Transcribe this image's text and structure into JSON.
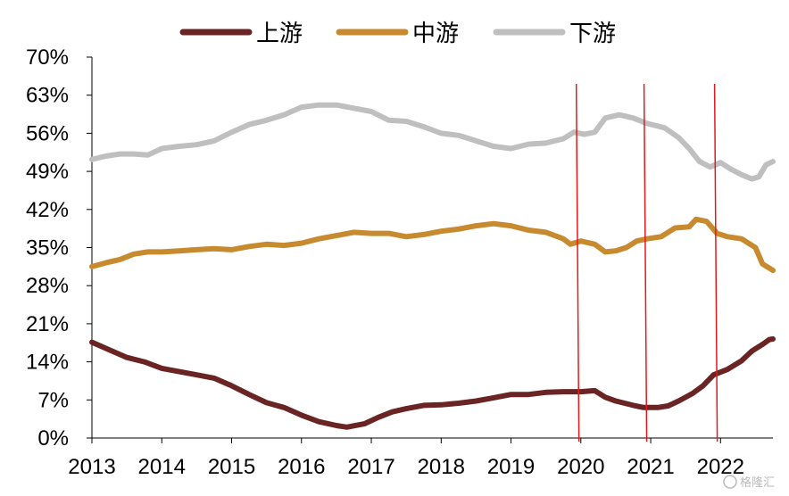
{
  "chart_data": {
    "type": "line",
    "title": "",
    "xlabel": "",
    "ylabel": "",
    "x_ticks": [
      "2013",
      "2014",
      "2015",
      "2016",
      "2017",
      "2018",
      "2019",
      "2020",
      "2021",
      "2022"
    ],
    "y_ticks": [
      "0%",
      "7%",
      "14%",
      "21%",
      "28%",
      "35%",
      "42%",
      "49%",
      "56%",
      "63%",
      "70%"
    ],
    "ylim": [
      0,
      70
    ],
    "xlim": [
      2013.0,
      2022.75
    ],
    "grid": false,
    "legend": "top",
    "vlines": [
      2019.96,
      2020.93,
      2021.94
    ],
    "vline_color": "#e31a1c",
    "series": [
      {
        "name": "上游",
        "color": "#6b2424",
        "points": [
          [
            2013.0,
            17.6
          ],
          [
            2013.25,
            16.2
          ],
          [
            2013.5,
            14.8
          ],
          [
            2013.75,
            14.0
          ],
          [
            2014.0,
            12.8
          ],
          [
            2014.25,
            12.2
          ],
          [
            2014.5,
            11.6
          ],
          [
            2014.75,
            11.0
          ],
          [
            2015.0,
            9.6
          ],
          [
            2015.25,
            8.0
          ],
          [
            2015.5,
            6.5
          ],
          [
            2015.75,
            5.6
          ],
          [
            2016.0,
            4.2
          ],
          [
            2016.25,
            3.0
          ],
          [
            2016.5,
            2.3
          ],
          [
            2016.65,
            2.0
          ],
          [
            2016.9,
            2.6
          ],
          [
            2017.1,
            3.8
          ],
          [
            2017.3,
            4.8
          ],
          [
            2017.5,
            5.4
          ],
          [
            2017.75,
            6.0
          ],
          [
            2018.0,
            6.1
          ],
          [
            2018.25,
            6.4
          ],
          [
            2018.5,
            6.8
          ],
          [
            2018.75,
            7.4
          ],
          [
            2019.0,
            8.0
          ],
          [
            2019.25,
            8.0
          ],
          [
            2019.5,
            8.4
          ],
          [
            2019.75,
            8.5
          ],
          [
            2020.0,
            8.5
          ],
          [
            2020.2,
            8.7
          ],
          [
            2020.35,
            7.5
          ],
          [
            2020.5,
            6.8
          ],
          [
            2020.75,
            6.0
          ],
          [
            2020.9,
            5.6
          ],
          [
            2021.1,
            5.6
          ],
          [
            2021.25,
            5.9
          ],
          [
            2021.4,
            6.8
          ],
          [
            2021.6,
            8.2
          ],
          [
            2021.75,
            9.6
          ],
          [
            2021.9,
            11.6
          ],
          [
            2022.1,
            12.6
          ],
          [
            2022.3,
            14.2
          ],
          [
            2022.45,
            16.0
          ],
          [
            2022.6,
            17.2
          ],
          [
            2022.7,
            18.1
          ],
          [
            2022.75,
            18.2
          ]
        ]
      },
      {
        "name": "中游",
        "color": "#c88a2e",
        "points": [
          [
            2013.0,
            31.5
          ],
          [
            2013.2,
            32.2
          ],
          [
            2013.4,
            32.8
          ],
          [
            2013.6,
            33.8
          ],
          [
            2013.8,
            34.2
          ],
          [
            2014.0,
            34.2
          ],
          [
            2014.25,
            34.4
          ],
          [
            2014.5,
            34.6
          ],
          [
            2014.75,
            34.8
          ],
          [
            2015.0,
            34.6
          ],
          [
            2015.25,
            35.2
          ],
          [
            2015.5,
            35.6
          ],
          [
            2015.75,
            35.4
          ],
          [
            2016.0,
            35.8
          ],
          [
            2016.25,
            36.6
          ],
          [
            2016.5,
            37.2
          ],
          [
            2016.75,
            37.8
          ],
          [
            2017.0,
            37.6
          ],
          [
            2017.25,
            37.6
          ],
          [
            2017.5,
            37.0
          ],
          [
            2017.75,
            37.4
          ],
          [
            2018.0,
            38.0
          ],
          [
            2018.25,
            38.4
          ],
          [
            2018.5,
            39.0
          ],
          [
            2018.75,
            39.4
          ],
          [
            2019.0,
            39.0
          ],
          [
            2019.25,
            38.2
          ],
          [
            2019.5,
            37.8
          ],
          [
            2019.75,
            36.6
          ],
          [
            2019.85,
            35.6
          ],
          [
            2020.0,
            36.2
          ],
          [
            2020.2,
            35.6
          ],
          [
            2020.35,
            34.2
          ],
          [
            2020.5,
            34.4
          ],
          [
            2020.65,
            35.0
          ],
          [
            2020.8,
            36.2
          ],
          [
            2020.95,
            36.6
          ],
          [
            2021.15,
            37.0
          ],
          [
            2021.35,
            38.6
          ],
          [
            2021.55,
            38.8
          ],
          [
            2021.65,
            40.2
          ],
          [
            2021.8,
            39.8
          ],
          [
            2021.95,
            37.6
          ],
          [
            2022.1,
            37.0
          ],
          [
            2022.3,
            36.6
          ],
          [
            2022.5,
            35.0
          ],
          [
            2022.6,
            32.0
          ],
          [
            2022.75,
            30.8
          ]
        ]
      },
      {
        "name": "下游",
        "color": "#bfbfbf",
        "points": [
          [
            2013.0,
            51.2
          ],
          [
            2013.2,
            51.8
          ],
          [
            2013.4,
            52.2
          ],
          [
            2013.6,
            52.2
          ],
          [
            2013.8,
            52.0
          ],
          [
            2014.0,
            53.2
          ],
          [
            2014.25,
            53.6
          ],
          [
            2014.5,
            53.9
          ],
          [
            2014.75,
            54.6
          ],
          [
            2015.0,
            56.2
          ],
          [
            2015.25,
            57.6
          ],
          [
            2015.5,
            58.4
          ],
          [
            2015.75,
            59.4
          ],
          [
            2016.0,
            60.8
          ],
          [
            2016.25,
            61.2
          ],
          [
            2016.5,
            61.2
          ],
          [
            2016.75,
            60.6
          ],
          [
            2017.0,
            60.0
          ],
          [
            2017.25,
            58.4
          ],
          [
            2017.5,
            58.2
          ],
          [
            2017.75,
            57.2
          ],
          [
            2018.0,
            56.0
          ],
          [
            2018.25,
            55.6
          ],
          [
            2018.5,
            54.6
          ],
          [
            2018.75,
            53.6
          ],
          [
            2019.0,
            53.2
          ],
          [
            2019.25,
            54.0
          ],
          [
            2019.5,
            54.2
          ],
          [
            2019.75,
            55.0
          ],
          [
            2019.9,
            56.2
          ],
          [
            2020.05,
            55.8
          ],
          [
            2020.2,
            56.2
          ],
          [
            2020.35,
            58.8
          ],
          [
            2020.55,
            59.4
          ],
          [
            2020.75,
            58.8
          ],
          [
            2020.95,
            57.8
          ],
          [
            2021.2,
            57.0
          ],
          [
            2021.4,
            55.2
          ],
          [
            2021.55,
            53.2
          ],
          [
            2021.7,
            50.8
          ],
          [
            2021.85,
            49.8
          ],
          [
            2022.0,
            50.6
          ],
          [
            2022.15,
            49.4
          ],
          [
            2022.3,
            48.4
          ],
          [
            2022.45,
            47.6
          ],
          [
            2022.55,
            48.0
          ],
          [
            2022.65,
            50.2
          ],
          [
            2022.75,
            50.8
          ]
        ]
      }
    ]
  },
  "watermark": {
    "text": "格隆汇"
  }
}
